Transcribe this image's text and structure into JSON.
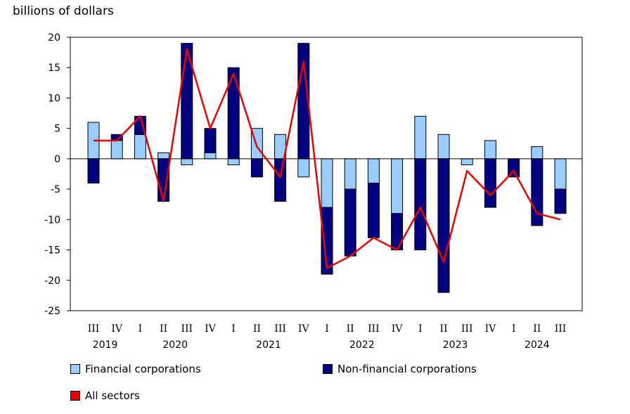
{
  "chart_data": {
    "type": "bar",
    "stacked": true,
    "ylabel": "billions of dollars",
    "ylim": [
      -25,
      20
    ],
    "yticks": [
      20,
      15,
      10,
      5,
      0,
      -5,
      -10,
      -15,
      -20,
      -25
    ],
    "quarters": [
      "III",
      "IV",
      "I",
      "II",
      "III",
      "IV",
      "I",
      "II",
      "III",
      "IV",
      "I",
      "II",
      "III",
      "IV",
      "I",
      "II",
      "III",
      "IV",
      "I",
      "II",
      "III"
    ],
    "years": [
      {
        "label": "2019",
        "start": 0,
        "end": 1
      },
      {
        "label": "2020",
        "start": 2,
        "end": 5
      },
      {
        "label": "2021",
        "start": 6,
        "end": 9
      },
      {
        "label": "2022",
        "start": 10,
        "end": 13
      },
      {
        "label": "2023",
        "start": 14,
        "end": 17
      },
      {
        "label": "2024",
        "start": 18,
        "end": 20
      }
    ],
    "series": [
      {
        "name": "Financial corporations",
        "kind": "bar",
        "color": "#99ccff",
        "values": [
          6,
          3,
          4,
          1,
          -1,
          1,
          -1,
          5,
          4,
          -3,
          -8,
          -5,
          -4,
          -9,
          7,
          4,
          -1,
          3,
          0,
          2,
          -5
        ]
      },
      {
        "name": "Non-financial corporations",
        "kind": "bar",
        "color": "#000080",
        "values": [
          -4,
          1,
          3,
          -7,
          19,
          4,
          15,
          -3,
          -7,
          19,
          -11,
          -11,
          -9,
          -6,
          -15,
          -22,
          0,
          -8,
          -3,
          -11,
          -4
        ]
      },
      {
        "name": "All sectors",
        "kind": "line",
        "color": "#ee0000",
        "values": [
          3,
          3,
          7,
          -7,
          18,
          5,
          14,
          2,
          -3,
          16,
          -18,
          -16,
          -13,
          -15,
          -8,
          -17,
          -2,
          -6,
          -2,
          -9,
          -10
        ]
      }
    ]
  }
}
